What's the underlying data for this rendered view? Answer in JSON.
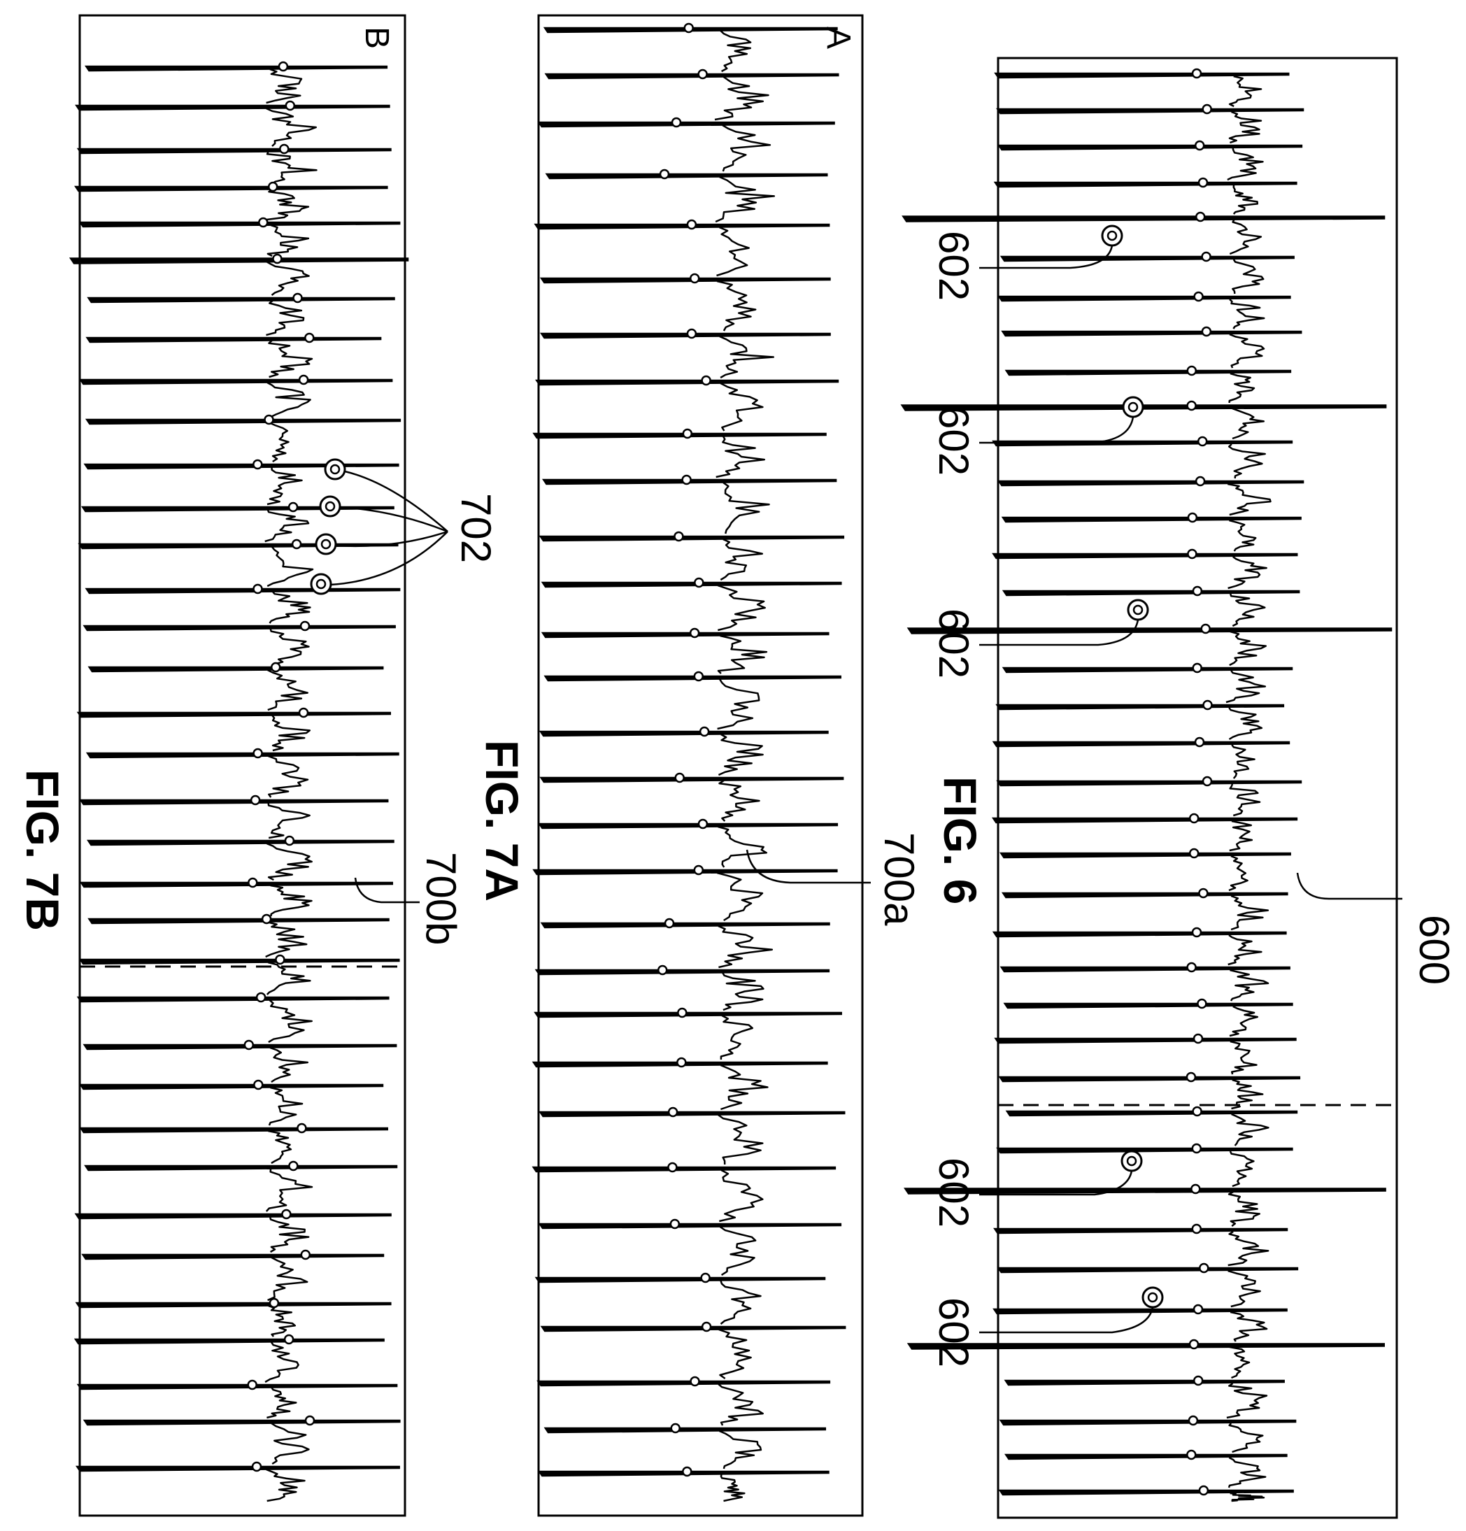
{
  "figures": {
    "fig6": {
      "caption": "FIG. 6",
      "trace_label": "600",
      "marker_labels": [
        "602",
        "602",
        "602",
        "602",
        "602"
      ]
    },
    "fig7a": {
      "caption": "FIG. 7A",
      "panel_letter": "A",
      "trace_label": "700a"
    },
    "fig7b": {
      "caption": "FIG. 7B",
      "panel_letter": "B",
      "trace_label": "700b",
      "group_label": "702"
    }
  },
  "colors": {
    "ink": "#000000",
    "paper": "#ffffff"
  }
}
